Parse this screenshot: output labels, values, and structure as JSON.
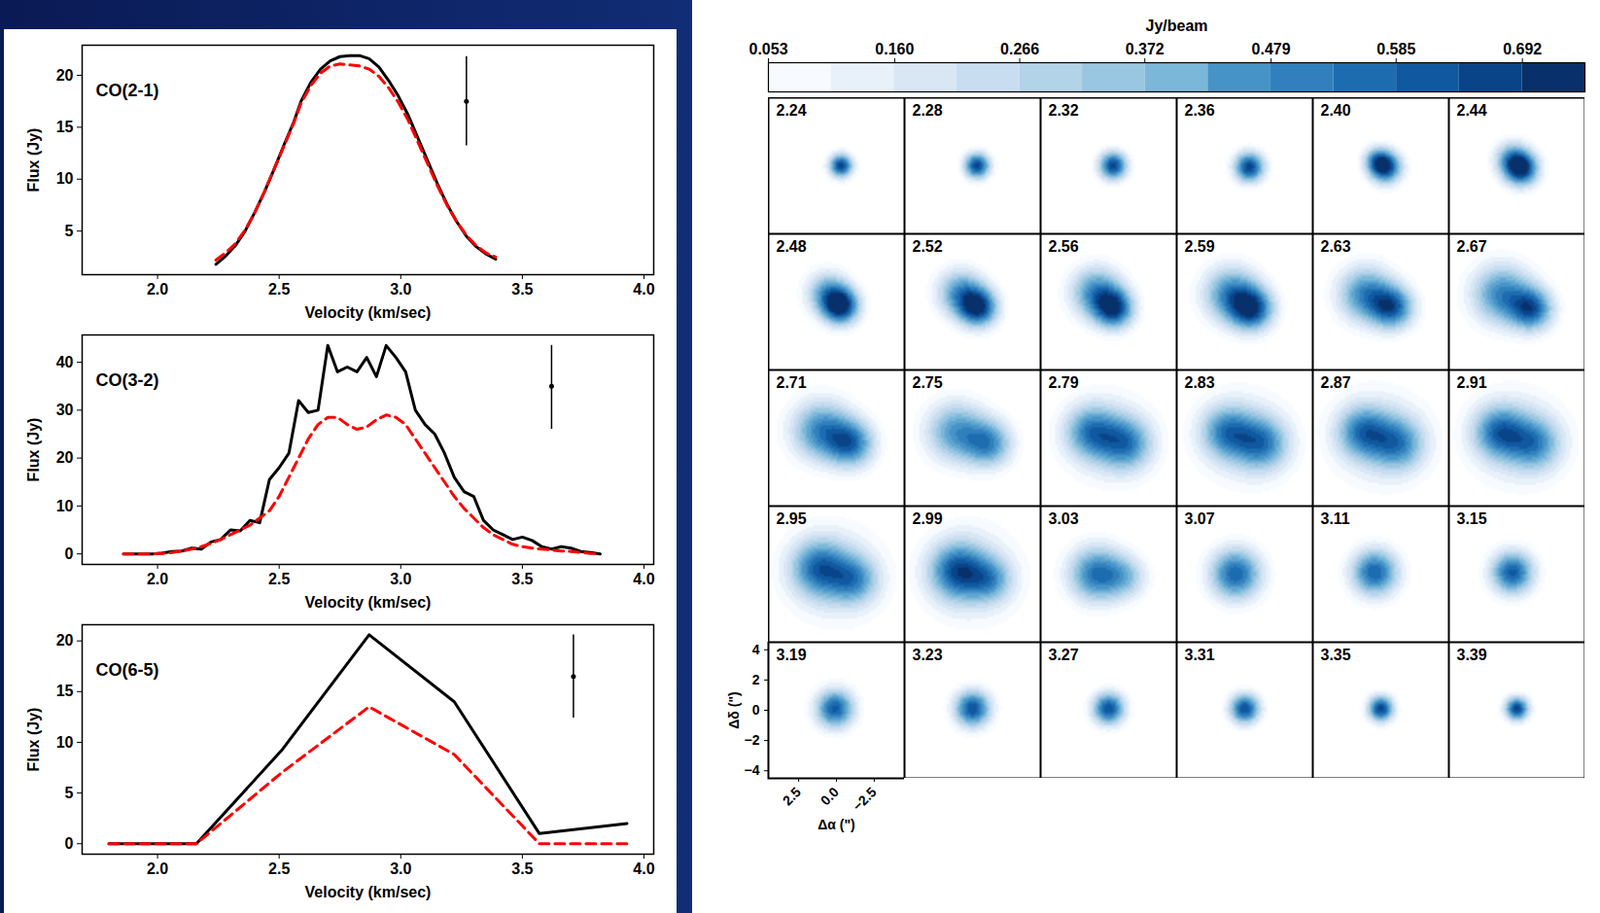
{
  "chart_data": [
    {
      "type": "line",
      "title": "CO(2-1)",
      "x_label": "Velocity (km/sec)",
      "y_label": "Flux (Jy)",
      "xlim": [
        1.69,
        4.04
      ],
      "xticks": [
        {
          "value": 2,
          "label": "2.0"
        },
        2.5,
        {
          "value": 3,
          "label": "3.0"
        },
        3.5,
        {
          "value": 4,
          "label": "4.0"
        }
      ],
      "ylim": [
        0.8,
        22.9
      ],
      "yticks": [
        5,
        10,
        15,
        20
      ],
      "x": [
        2.24,
        2.28,
        2.32,
        2.36,
        2.4,
        2.44,
        2.48,
        2.52,
        2.56,
        2.59,
        2.63,
        2.67,
        2.71,
        2.75,
        2.79,
        2.83,
        2.87,
        2.91,
        2.95,
        2.99,
        3.03,
        3.07,
        3.11,
        3.15,
        3.19,
        3.23,
        3.27,
        3.31,
        3.35,
        3.39
      ],
      "series": [
        {
          "color": "#000000",
          "line_style": "solid",
          "values": [
            1.8,
            2.6,
            3.6,
            5.0,
            6.8,
            8.8,
            11.0,
            13.3,
            15.5,
            17.5,
            19.3,
            20.6,
            21.4,
            21.8,
            21.9,
            21.9,
            21.6,
            20.8,
            19.5,
            18.0,
            16.2,
            14.0,
            11.8,
            9.6,
            7.6,
            5.9,
            4.5,
            3.5,
            2.8,
            2.3
          ]
        },
        {
          "color": "#ff0000",
          "line_style": "dashed",
          "values": [
            2.2,
            2.9,
            3.8,
            5.1,
            6.8,
            8.8,
            11.0,
            13.2,
            15.4,
            17.3,
            19.0,
            20.2,
            20.9,
            21.1,
            21.0,
            20.9,
            20.6,
            19.9,
            18.8,
            17.4,
            15.7,
            13.6,
            11.5,
            9.4,
            7.5,
            5.9,
            4.6,
            3.6,
            2.9,
            2.5
          ]
        }
      ],
      "error_bar": {
        "x": 3.27,
        "y": 17.5,
        "low": 13.2,
        "high": 21.8
      }
    },
    {
      "type": "line",
      "title": "CO(3-2)",
      "x_label": "Velocity (km/sec)",
      "y_label": "Flux (Jy)",
      "xlim": [
        1.69,
        4.04
      ],
      "xticks": [
        {
          "value": 2,
          "label": "2.0"
        },
        2.5,
        {
          "value": 3,
          "label": "3.0"
        },
        3.5,
        {
          "value": 4,
          "label": "4.0"
        }
      ],
      "ylim": [
        -2.2,
        45.7
      ],
      "yticks": [
        0,
        10,
        20,
        30,
        40
      ],
      "x": [
        1.86,
        1.9,
        1.94,
        1.98,
        2.02,
        2.06,
        2.1,
        2.14,
        2.18,
        2.22,
        2.26,
        2.3,
        2.34,
        2.38,
        2.42,
        2.46,
        2.5,
        2.54,
        2.58,
        2.62,
        2.66,
        2.7,
        2.74,
        2.78,
        2.82,
        2.86,
        2.9,
        2.94,
        2.98,
        3.02,
        3.06,
        3.1,
        3.14,
        3.18,
        3.22,
        3.26,
        3.3,
        3.34,
        3.38,
        3.42,
        3.46,
        3.5,
        3.54,
        3.58,
        3.62,
        3.66,
        3.7,
        3.74,
        3.78,
        3.82
      ],
      "series": [
        {
          "color": "#000000",
          "line_style": "solid",
          "values": [
            0,
            0,
            0,
            0,
            0.2,
            0.5,
            0.6,
            1.2,
            1.0,
            2.5,
            3.0,
            5.0,
            4.8,
            7.0,
            6.5,
            15.5,
            18.0,
            21.0,
            32.0,
            29.5,
            30.0,
            43.5,
            38.0,
            39.0,
            38.0,
            41.0,
            37.0,
            43.5,
            41.0,
            38.0,
            30.0,
            27.0,
            25.0,
            21.0,
            16.0,
            13.0,
            12.0,
            7.0,
            5.0,
            4.0,
            3.0,
            3.5,
            2.8,
            1.5,
            1.0,
            1.5,
            1.2,
            0.5,
            0.3,
            0
          ]
        },
        {
          "color": "#ff0000",
          "line_style": "dashed",
          "values": [
            0,
            0,
            0,
            0,
            0.1,
            0.3,
            0.6,
            1.0,
            1.5,
            2.2,
            3.0,
            4.0,
            5.0,
            6.0,
            7.5,
            9.0,
            12.0,
            16.0,
            20.0,
            24.0,
            27.0,
            28.5,
            28.5,
            27.0,
            26.0,
            26.5,
            28.0,
            29.0,
            28.5,
            27.0,
            24.0,
            21.0,
            18.0,
            15.0,
            12.0,
            9.5,
            7.5,
            5.5,
            4.0,
            3.0,
            2.0,
            1.5,
            1.2,
            1.0,
            0.8,
            0.6,
            0.5,
            0.3,
            0.1,
            0
          ]
        }
      ],
      "error_bar": {
        "x": 3.62,
        "y": 35,
        "low": 26,
        "high": 43.5
      }
    },
    {
      "type": "line",
      "title": "CO(6-5)",
      "x_label": "Velocity (km/sec)",
      "y_label": "Flux (Jy)",
      "xlim": [
        1.69,
        4.04
      ],
      "xticks": [
        {
          "value": 2,
          "label": "2.0"
        },
        2.5,
        {
          "value": 3,
          "label": "3.0"
        },
        3.5,
        {
          "value": 4,
          "label": "4.0"
        }
      ],
      "ylim": [
        -1.03,
        21.6
      ],
      "yticks": [
        0,
        5,
        10,
        15,
        20
      ],
      "x": [
        1.8,
        2.16,
        2.51,
        2.87,
        3.22,
        3.57,
        3.93
      ],
      "series": [
        {
          "color": "#000000",
          "line_style": "solid",
          "values": [
            0,
            0,
            9.2,
            20.6,
            14.0,
            1.0,
            2.0
          ]
        },
        {
          "color": "#ff0000",
          "line_style": "dashed",
          "values": [
            0,
            0,
            7.0,
            13.5,
            8.8,
            0,
            0
          ]
        }
      ],
      "error_bar": {
        "x": 3.71,
        "y": 16.5,
        "low": 12.4,
        "high": 20.6
      }
    },
    {
      "type": "channel_maps",
      "x_label": "Δα (\")",
      "y_label": "Δδ (\")",
      "xlim": [
        4.5,
        -4.5
      ],
      "xticks": [
        2.5,
        {
          "value": 0,
          "label": "0.0"
        },
        {
          "value": -2.5,
          "label": "−2.5"
        }
      ],
      "ylim": [
        -4.5,
        4.5
      ],
      "yticks": [
        4,
        2,
        0,
        {
          "value": -2,
          "label": "−2"
        },
        {
          "value": -4,
          "label": "−4"
        }
      ],
      "colorbar": {
        "label": "Jy/beam",
        "lim": [
          0.053,
          0.745
        ],
        "ticks": [
          0.053,
          {
            "value": 0.16,
            "label": "0.160"
          },
          0.266,
          0.372,
          0.479,
          0.585,
          0.692
        ]
      },
      "channels": [
        {
          "label": "2.24",
          "components": [
            {
              "x": -0.3,
              "y": 0,
              "sigma": 0.55,
              "peak": 0.68
            }
          ]
        },
        {
          "label": "2.28",
          "components": [
            {
              "x": -0.3,
              "y": 0,
              "sigma": 0.6,
              "peak": 0.68
            }
          ]
        },
        {
          "label": "2.32",
          "components": [
            {
              "x": -0.3,
              "y": 0,
              "sigma": 0.65,
              "peak": 0.68
            }
          ]
        },
        {
          "label": "2.36",
          "components": [
            {
              "x": -0.3,
              "y": -0.1,
              "sigma": 0.7,
              "peak": 0.68
            }
          ]
        },
        {
          "label": "2.40",
          "components": [
            {
              "x": -0.3,
              "y": -0.1,
              "sigma": 0.75,
              "peak": 0.7
            },
            {
              "x": 0.3,
              "y": 0.4,
              "sigma": 0.6,
              "peak": 0.3
            }
          ]
        },
        {
          "label": "2.44",
          "components": [
            {
              "x": -0.3,
              "y": -0.2,
              "sigma": 0.8,
              "peak": 0.7
            },
            {
              "x": 0.4,
              "y": 0.5,
              "sigma": 0.8,
              "peak": 0.35
            }
          ]
        },
        {
          "label": "2.48",
          "components": [
            {
              "x": -0.3,
              "y": -0.3,
              "sigma": 0.85,
              "peak": 0.7
            },
            {
              "x": 0.6,
              "y": 0.6,
              "sigma": 1.0,
              "peak": 0.4
            }
          ]
        },
        {
          "label": "2.52",
          "components": [
            {
              "x": -0.4,
              "y": -0.4,
              "sigma": 0.9,
              "peak": 0.65
            },
            {
              "x": 0.8,
              "y": 0.6,
              "sigma": 1.1,
              "peak": 0.45
            }
          ]
        },
        {
          "label": "2.56",
          "components": [
            {
              "x": -0.4,
              "y": -0.5,
              "sigma": 0.9,
              "peak": 0.6
            },
            {
              "x": 0.8,
              "y": 0.6,
              "sigma": 1.2,
              "peak": 0.5
            }
          ]
        },
        {
          "label": "2.59",
          "components": [
            {
              "x": -0.5,
              "y": -0.5,
              "sigma": 1.0,
              "peak": 0.6
            },
            {
              "x": 0.9,
              "y": 0.5,
              "sigma": 1.3,
              "peak": 0.5
            }
          ]
        },
        {
          "label": "2.63",
          "components": [
            {
              "x": -0.8,
              "y": -0.4,
              "sigma": 1.0,
              "peak": 0.55
            },
            {
              "x": 1.0,
              "y": 0.5,
              "sigma": 1.3,
              "peak": 0.5
            }
          ]
        },
        {
          "label": "2.67",
          "components": [
            {
              "x": -1.0,
              "y": -0.5,
              "sigma": 1.0,
              "peak": 0.55
            },
            {
              "x": 1.0,
              "y": 0.5,
              "sigma": 1.4,
              "peak": 0.5
            }
          ]
        },
        {
          "label": "2.71",
          "components": [
            {
              "x": -1.0,
              "y": -0.4,
              "sigma": 1.1,
              "peak": 0.5
            },
            {
              "x": 1.0,
              "y": 0.5,
              "sigma": 1.4,
              "peak": 0.5
            }
          ]
        },
        {
          "label": "2.75",
          "components": [
            {
              "x": -1.1,
              "y": -0.4,
              "sigma": 1.1,
              "peak": 0.45
            },
            {
              "x": 1.1,
              "y": 0.4,
              "sigma": 1.4,
              "peak": 0.45
            }
          ]
        },
        {
          "label": "2.79",
          "components": [
            {
              "x": -1.2,
              "y": -0.4,
              "sigma": 1.2,
              "peak": 0.4
            },
            {
              "x": 1.2,
              "y": 0.4,
              "sigma": 1.2,
              "peak": 0.4
            },
            {
              "x": 0,
              "y": 0,
              "sigma": 2.0,
              "peak": 0.2
            }
          ]
        },
        {
          "label": "2.83",
          "components": [
            {
              "x": -1.2,
              "y": -0.4,
              "sigma": 1.2,
              "peak": 0.4
            },
            {
              "x": 1.2,
              "y": 0.4,
              "sigma": 1.2,
              "peak": 0.4
            },
            {
              "x": 0,
              "y": 0,
              "sigma": 2.1,
              "peak": 0.2
            }
          ]
        },
        {
          "label": "2.87",
          "components": [
            {
              "x": -1.2,
              "y": -0.4,
              "sigma": 1.2,
              "peak": 0.38
            },
            {
              "x": 1.2,
              "y": 0.4,
              "sigma": 1.2,
              "peak": 0.42
            },
            {
              "x": 0,
              "y": 0,
              "sigma": 2.2,
              "peak": 0.2
            }
          ]
        },
        {
          "label": "2.91",
          "components": [
            {
              "x": -1.2,
              "y": -0.4,
              "sigma": 1.2,
              "peak": 0.37
            },
            {
              "x": 1.2,
              "y": 0.4,
              "sigma": 1.2,
              "peak": 0.44
            },
            {
              "x": 0,
              "y": 0,
              "sigma": 2.2,
              "peak": 0.2
            }
          ]
        },
        {
          "label": "2.95",
          "components": [
            {
              "x": -1.2,
              "y": -0.4,
              "sigma": 1.1,
              "peak": 0.35
            },
            {
              "x": 1.2,
              "y": 0.4,
              "sigma": 1.3,
              "peak": 0.45
            },
            {
              "x": 0,
              "y": 0,
              "sigma": 2.2,
              "peak": 0.2
            }
          ]
        },
        {
          "label": "2.99",
          "components": [
            {
              "x": -1.2,
              "y": -0.4,
              "sigma": 1.0,
              "peak": 0.3
            },
            {
              "x": 1.0,
              "y": 0.2,
              "sigma": 1.3,
              "peak": 0.5
            },
            {
              "x": 0,
              "y": 0,
              "sigma": 2.2,
              "peak": 0.2
            }
          ]
        },
        {
          "label": "3.03",
          "components": [
            {
              "x": -1.2,
              "y": -0.2,
              "sigma": 1.0,
              "peak": 0.25
            },
            {
              "x": 0.8,
              "y": 0,
              "sigma": 1.3,
              "peak": 0.55
            }
          ]
        },
        {
          "label": "3.07",
          "components": [
            {
              "x": 0.6,
              "y": 0,
              "sigma": 1.2,
              "peak": 0.6
            }
          ]
        },
        {
          "label": "3.11",
          "components": [
            {
              "x": 0.4,
              "y": 0.1,
              "sigma": 1.1,
              "peak": 0.6
            }
          ]
        },
        {
          "label": "3.15",
          "components": [
            {
              "x": 0.3,
              "y": 0.1,
              "sigma": 1.0,
              "peak": 0.62
            }
          ]
        },
        {
          "label": "3.19",
          "components": [
            {
              "x": 0.1,
              "y": 0.1,
              "sigma": 0.9,
              "peak": 0.62
            }
          ]
        },
        {
          "label": "3.23",
          "components": [
            {
              "x": 0,
              "y": 0.1,
              "sigma": 0.85,
              "peak": 0.65
            }
          ]
        },
        {
          "label": "3.27",
          "components": [
            {
              "x": 0,
              "y": 0.1,
              "sigma": 0.75,
              "peak": 0.65
            }
          ]
        },
        {
          "label": "3.31",
          "components": [
            {
              "x": 0,
              "y": 0.1,
              "sigma": 0.7,
              "peak": 0.65
            }
          ]
        },
        {
          "label": "3.35",
          "components": [
            {
              "x": 0,
              "y": 0.1,
              "sigma": 0.6,
              "peak": 0.68
            }
          ]
        },
        {
          "label": "3.39",
          "components": [
            {
              "x": 0,
              "y": 0.1,
              "sigma": 0.55,
              "peak": 0.68
            }
          ]
        }
      ]
    }
  ]
}
